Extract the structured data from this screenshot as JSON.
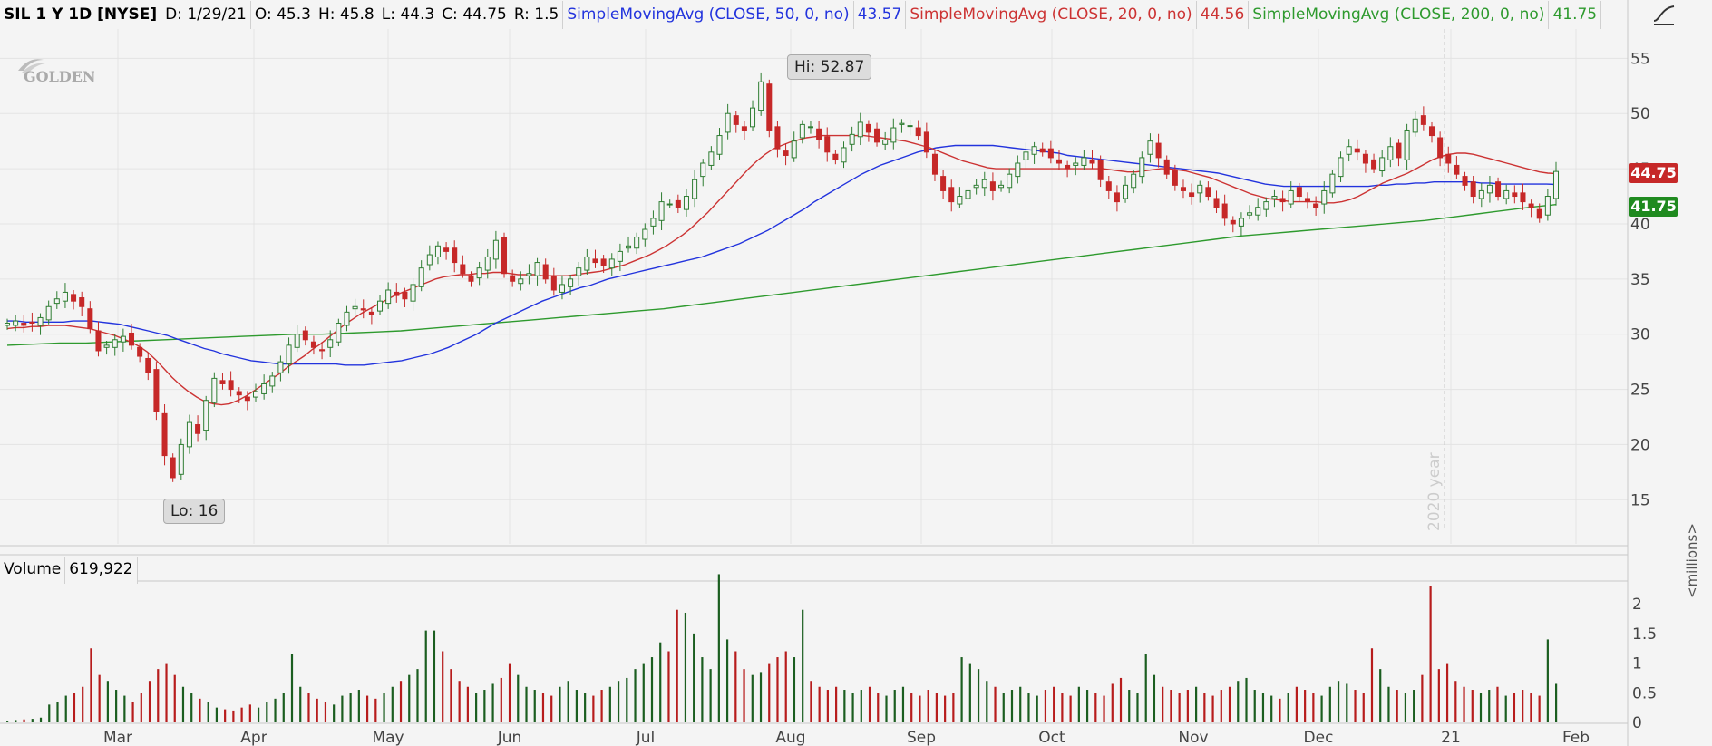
{
  "header": {
    "symbol": "SIL 1 Y 1D [NYSE]",
    "date": "D: 1/29/21",
    "open": "O: 45.3",
    "high": "H: 45.8",
    "low": "L: 44.3",
    "close": "C: 44.75",
    "range": "R: 1.5",
    "sma50_label": "SimpleMovingAvg (CLOSE, 50, 0, no)",
    "sma50_value": "43.57",
    "sma20_label": "SimpleMovingAvg (CLOSE, 20, 0, no)",
    "sma20_value": "44.56",
    "sma200_label": "SimpleMovingAvg (CLOSE, 200, 0, no)",
    "sma200_value": "41.75"
  },
  "colors": {
    "up": "#2e7d32",
    "down": "#c62828",
    "sma50": "#2233dd",
    "sma20": "#cc3333",
    "sma200": "#2e9a2e",
    "grid": "#e3e3e3"
  },
  "callouts": {
    "hi": "Hi: 52.87",
    "lo": "Lo: 16"
  },
  "price_tags": {
    "close": "44.75",
    "sma200": "41.75"
  },
  "year_marker": "2020 year",
  "volume": {
    "label": "Volume",
    "value": "619,922",
    "unit": "<millions>"
  },
  "watermark": "GOLDEN",
  "chart_data": {
    "type": "candlestick",
    "x_labels": [
      "Mar",
      "Apr",
      "May",
      "Jun",
      "Jul",
      "Aug",
      "Sep",
      "Oct",
      "Nov",
      "Dec",
      "21",
      "Feb"
    ],
    "y_ticks": [
      15,
      20,
      25,
      30,
      35,
      40,
      45,
      50,
      55
    ],
    "ylim": [
      11,
      57
    ],
    "volume_ticks": [
      "0",
      "0.5",
      "1",
      "1.5",
      "2"
    ],
    "volume_ylim": [
      0,
      2.4
    ],
    "close_series": [
      31,
      31.2,
      30.8,
      31,
      31.5,
      32.5,
      33.2,
      33.8,
      33,
      32.5,
      30.5,
      28.5,
      29,
      29.5,
      29.8,
      29,
      28,
      26.5,
      23,
      19,
      17,
      20,
      22,
      21,
      24,
      26,
      25.5,
      25,
      24.5,
      24,
      24.8,
      25.5,
      26.2,
      27.5,
      29,
      30,
      29.5,
      28.8,
      28.5,
      29.5,
      31,
      32,
      32.5,
      32.2,
      31.8,
      33,
      34,
      33.5,
      33.2,
      34.5,
      36,
      37.2,
      38,
      37.5,
      36.5,
      35.5,
      34.8,
      36,
      37,
      38.5,
      35.5,
      34.8,
      35,
      35.5,
      36.5,
      35,
      34,
      34.5,
      35,
      36,
      37,
      36.5,
      36.2,
      36.8,
      37.5,
      38,
      38.8,
      39.5,
      40.5,
      42,
      41.8,
      41.5,
      42.5,
      44,
      45.5,
      46.5,
      48,
      50,
      49,
      48.5,
      50.5,
      52.87,
      48.5,
      46.8,
      46.2,
      47.5,
      49,
      48.8,
      47.6,
      46.5,
      45.8,
      46.9,
      48.1,
      49.2,
      48.3,
      47.4,
      47.6,
      48.7,
      49.1,
      48.9,
      48,
      46.5,
      44.5,
      43,
      42,
      42.5,
      43,
      43.5,
      44,
      43,
      43.5,
      44.5,
      45.5,
      46.5,
      47,
      46.5,
      46,
      45.5,
      45,
      45.5,
      46,
      45.5,
      44,
      43,
      42,
      43.5,
      44.5,
      46,
      47.5,
      46,
      44.5,
      43.5,
      43,
      42.5,
      43.5,
      42.5,
      41.5,
      40.5,
      40,
      40.5,
      41,
      41.5,
      42,
      42.5,
      42,
      43,
      42.5,
      42,
      41.5,
      43,
      44.5,
      46,
      47,
      46.5,
      45.5,
      45,
      46,
      47,
      46,
      48.5,
      49.5,
      49,
      48,
      46,
      45.5,
      44.5,
      43.5,
      42.5,
      43,
      43.5,
      42.5,
      43,
      42.5,
      42,
      41.5,
      40.5,
      42.5,
      44.75
    ],
    "sma20_series": [
      30.5,
      30.6,
      30.6,
      30.7,
      30.7,
      30.8,
      30.8,
      30.8,
      30.7,
      30.6,
      30.5,
      30.3,
      30.1,
      29.9,
      29.6,
      29.3,
      28.9,
      28.4,
      27.7,
      26.9,
      26.1,
      25.4,
      24.8,
      24.3,
      23.9,
      23.7,
      23.6,
      23.7,
      24,
      24.4,
      24.9,
      25.4,
      25.9,
      26.4,
      27,
      27.5,
      28,
      28.6,
      29.1,
      29.7,
      30.3,
      30.9,
      31.4,
      31.9,
      32.3,
      32.7,
      33.1,
      33.5,
      33.8,
      34.1,
      34.4,
      34.7,
      35,
      35.2,
      35.3,
      35.4,
      35.4,
      35.5,
      35.5,
      35.6,
      35.6,
      35.5,
      35.4,
      35.4,
      35.4,
      35.3,
      35.3,
      35.3,
      35.3,
      35.4,
      35.5,
      35.6,
      35.7,
      35.9,
      36.1,
      36.3,
      36.6,
      36.9,
      37.2,
      37.6,
      38,
      38.5,
      39,
      39.6,
      40.3,
      41,
      41.8,
      42.6,
      43.4,
      44.2,
      45,
      45.7,
      46.3,
      46.8,
      47.1,
      47.4,
      47.6,
      47.8,
      47.9,
      48,
      48,
      48,
      48,
      48,
      48,
      47.9,
      47.8,
      47.7,
      47.6,
      47.5,
      47.3,
      47.1,
      46.9,
      46.6,
      46.3,
      46,
      45.7,
      45.5,
      45.3,
      45.1,
      45,
      45,
      45,
      45,
      45,
      45,
      45,
      45,
      45,
      45,
      45,
      45,
      45,
      45,
      44.9,
      44.8,
      44.7,
      44.7,
      44.8,
      44.9,
      45,
      45,
      44.9,
      44.8,
      44.6,
      44.4,
      44.2,
      43.9,
      43.6,
      43.3,
      43,
      42.7,
      42.5,
      42.3,
      42.2,
      42.1,
      42,
      42,
      42,
      42,
      41.9,
      41.9,
      42,
      42.2,
      42.5,
      42.9,
      43.3,
      43.7,
      44,
      44.3,
      44.6,
      45,
      45.4,
      45.8,
      46.1,
      46.3,
      46.4,
      46.4,
      46.3,
      46.1,
      45.9,
      45.7,
      45.5,
      45.3,
      45.1,
      44.9,
      44.7,
      44.6,
      44.56
    ],
    "sma50_series": [
      31.2,
      31.2,
      31.1,
      31.1,
      31.1,
      31.1,
      31.1,
      31.2,
      31.2,
      31.2,
      31.1,
      31,
      30.9,
      30.7,
      30.5,
      30.3,
      30.1,
      29.9,
      29.6,
      29.3,
      29,
      28.7,
      28.5,
      28.2,
      28,
      27.8,
      27.6,
      27.5,
      27.4,
      27.3,
      27.3,
      27.3,
      27.3,
      27.3,
      27.3,
      27.3,
      27.2,
      27.2,
      27.2,
      27.3,
      27.4,
      27.5,
      27.6,
      27.8,
      28,
      28.2,
      28.5,
      28.8,
      29.2,
      29.6,
      30,
      30.5,
      31,
      31.4,
      31.8,
      32.2,
      32.6,
      33,
      33.3,
      33.6,
      33.9,
      34.2,
      34.4,
      34.7,
      35,
      35.2,
      35.4,
      35.6,
      35.8,
      36,
      36.2,
      36.4,
      36.6,
      36.8,
      37,
      37.3,
      37.6,
      37.9,
      38.2,
      38.6,
      39,
      39.4,
      39.9,
      40.4,
      40.9,
      41.4,
      42,
      42.5,
      43,
      43.5,
      44,
      44.5,
      44.9,
      45.3,
      45.6,
      45.9,
      46.2,
      46.5,
      46.7,
      46.9,
      47,
      47.1,
      47.1,
      47.1,
      47.1,
      47.1,
      47,
      46.9,
      46.8,
      46.7,
      46.6,
      46.5,
      46.4,
      46.2,
      46.1,
      46,
      45.9,
      45.8,
      45.7,
      45.6,
      45.5,
      45.4,
      45.3,
      45.2,
      45.1,
      45,
      44.9,
      44.8,
      44.7,
      44.6,
      44.4,
      44.2,
      44,
      43.8,
      43.6,
      43.5,
      43.4,
      43.4,
      43.4,
      43.4,
      43.4,
      43.4,
      43.4,
      43.4,
      43.4,
      43.4,
      43.5,
      43.5,
      43.6,
      43.6,
      43.7,
      43.7,
      43.8,
      43.8,
      43.8,
      43.8,
      43.8,
      43.7,
      43.7,
      43.6,
      43.6,
      43.6,
      43.6,
      43.6,
      43.6,
      43.57
    ],
    "sma200_series": [
      29,
      29.1,
      29.2,
      29.2,
      29.3,
      29.4,
      29.5,
      29.6,
      29.7,
      29.8,
      29.9,
      30,
      30,
      30.1,
      30.2,
      30.3,
      30.5,
      30.7,
      30.9,
      31.1,
      31.3,
      31.5,
      31.7,
      31.9,
      32.1,
      32.3,
      32.6,
      32.9,
      33.2,
      33.5,
      33.8,
      34.1,
      34.4,
      34.7,
      35,
      35.3,
      35.6,
      35.9,
      36.2,
      36.5,
      36.8,
      37.1,
      37.4,
      37.7,
      38,
      38.3,
      38.6,
      38.9,
      39.1,
      39.3,
      39.5,
      39.7,
      39.9,
      40.1,
      40.3,
      40.6,
      40.9,
      41.2,
      41.5,
      41.75
    ],
    "volume_series": [
      0.03,
      0.04,
      0.05,
      0.06,
      0.08,
      0.3,
      0.35,
      0.45,
      0.5,
      0.6,
      1.25,
      0.8,
      0.7,
      0.55,
      0.45,
      0.35,
      0.5,
      0.7,
      0.9,
      1.0,
      0.8,
      0.6,
      0.5,
      0.4,
      0.35,
      0.25,
      0.22,
      0.2,
      0.25,
      0.3,
      0.25,
      0.35,
      0.4,
      0.5,
      1.15,
      0.6,
      0.5,
      0.4,
      0.35,
      0.3,
      0.45,
      0.5,
      0.55,
      0.45,
      0.4,
      0.5,
      0.6,
      0.7,
      0.8,
      0.9,
      1.55,
      1.55,
      1.2,
      0.9,
      0.7,
      0.6,
      0.5,
      0.55,
      0.65,
      0.75,
      1.0,
      0.8,
      0.6,
      0.55,
      0.5,
      0.45,
      0.6,
      0.7,
      0.55,
      0.5,
      0.45,
      0.55,
      0.6,
      0.7,
      0.75,
      0.9,
      1.0,
      1.1,
      1.35,
      1.2,
      1.9,
      1.85,
      1.5,
      1.1,
      0.9,
      2.5,
      1.4,
      1.2,
      0.9,
      0.8,
      0.85,
      1.0,
      1.1,
      1.2,
      1.1,
      1.9,
      0.7,
      0.6,
      0.55,
      0.6,
      0.55,
      0.5,
      0.55,
      0.6,
      0.5,
      0.45,
      0.55,
      0.6,
      0.5,
      0.45,
      0.55,
      0.5,
      0.45,
      0.5,
      1.1,
      1.0,
      0.9,
      0.7,
      0.6,
      0.5,
      0.55,
      0.6,
      0.5,
      0.45,
      0.55,
      0.6,
      0.5,
      0.45,
      0.6,
      0.55,
      0.5,
      0.45,
      0.65,
      0.75,
      0.55,
      0.5,
      1.15,
      0.8,
      0.6,
      0.55,
      0.5,
      0.55,
      0.6,
      0.5,
      0.45,
      0.55,
      0.6,
      0.7,
      0.75,
      0.55,
      0.5,
      0.45,
      0.4,
      0.5,
      0.6,
      0.55,
      0.5,
      0.45,
      0.6,
      0.7,
      0.65,
      0.55,
      0.5,
      1.25,
      0.9,
      0.6,
      0.55,
      0.5,
      0.55,
      0.8,
      2.3,
      0.9,
      1.0,
      0.7,
      0.6,
      0.55,
      0.5,
      0.55,
      0.6,
      0.45,
      0.5,
      0.55,
      0.5,
      0.45,
      1.4,
      0.65
    ]
  }
}
